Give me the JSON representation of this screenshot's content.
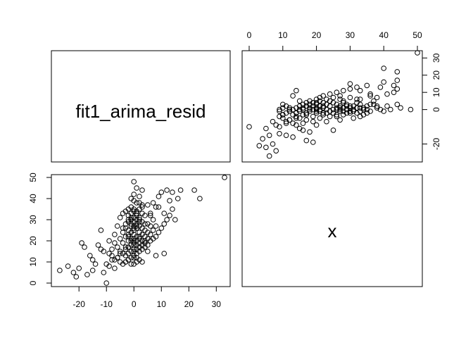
{
  "chart_data": {
    "type": "scatter",
    "plot_kind": "pairs",
    "variables": [
      "fit1_arima_resid",
      "x"
    ],
    "axes": {
      "fit1_arima_resid": {
        "range": [
          -28,
          33
        ],
        "ticks": [
          -20,
          -10,
          0,
          10,
          20,
          30
        ]
      },
      "x": {
        "range": [
          0,
          50
        ],
        "ticks": [
          0,
          10,
          20,
          30,
          40,
          50
        ]
      }
    },
    "panels": {
      "top_right": {
        "x_variable": "x",
        "y_variable": "fit1_arima_resid"
      },
      "bottom_left": {
        "x_variable": "fit1_arima_resid",
        "y_variable": "x"
      }
    },
    "points": {
      "fit1_arima_resid": [
        -27,
        -24,
        -22,
        -21,
        -20,
        -18,
        -17,
        -16,
        -15,
        -15,
        -14,
        -13,
        -12,
        -11,
        -11,
        -10,
        -10,
        -9,
        -9,
        -8,
        -8,
        -7,
        -7,
        -7,
        -6,
        -6,
        -6,
        -5,
        -5,
        -5,
        -5,
        -4,
        -4,
        -4,
        -4,
        -4,
        -3,
        -3,
        -3,
        -3,
        -3,
        -3,
        -2,
        -2,
        -2,
        -2,
        -2,
        -2,
        -2,
        -2,
        -1,
        -1,
        -1,
        -1,
        -1,
        -1,
        -1,
        -1,
        -1,
        0,
        0,
        0,
        0,
        0,
        0,
        0,
        0,
        0,
        0,
        0,
        0,
        1,
        1,
        1,
        1,
        1,
        1,
        1,
        1,
        1,
        2,
        2,
        2,
        2,
        2,
        2,
        2,
        2,
        3,
        3,
        3,
        3,
        3,
        3,
        3,
        4,
        4,
        4,
        4,
        4,
        4,
        5,
        5,
        5,
        5,
        5,
        6,
        6,
        6,
        6,
        7,
        7,
        7,
        7,
        8,
        8,
        8,
        9,
        9,
        10,
        10,
        11,
        11,
        12,
        12,
        13,
        13,
        14,
        14,
        15,
        16,
        17,
        22,
        24,
        33,
        -19,
        -12,
        -8,
        -6,
        -3,
        -1,
        1,
        2,
        3,
        5,
        8,
        11,
        -2,
        0,
        2,
        4,
        -1,
        1,
        3,
        -4,
        -2,
        0,
        2,
        0,
        1,
        -3,
        -1,
        1,
        3,
        6,
        9,
        -5,
        -2,
        2,
        0,
        4,
        -9,
        -7,
        -3,
        -1,
        0,
        2,
        1,
        0,
        -1,
        0,
        1,
        2,
        -2,
        1,
        0,
        -1,
        3,
        2
      ],
      "x": [
        6,
        8,
        5,
        3,
        7,
        17,
        4,
        13,
        6,
        11,
        9,
        18,
        25,
        5,
        15,
        9,
        0,
        20,
        14,
        16,
        11,
        7,
        19,
        23,
        12,
        17,
        27,
        10,
        15,
        21,
        31,
        9,
        14,
        19,
        26,
        33,
        10,
        13,
        17,
        22,
        28,
        34,
        11,
        14,
        17,
        20,
        25,
        29,
        32,
        35,
        12,
        15,
        18,
        21,
        24,
        27,
        30,
        33,
        36,
        13,
        15,
        16,
        18,
        19,
        21,
        23,
        25,
        27,
        29,
        31,
        34,
        14,
        16,
        18,
        20,
        22,
        26,
        28,
        30,
        33,
        15,
        17,
        19,
        21,
        24,
        27,
        30,
        35,
        16,
        18,
        20,
        23,
        26,
        29,
        33,
        17,
        19,
        22,
        25,
        28,
        32,
        18,
        21,
        24,
        28,
        37,
        20,
        23,
        27,
        33,
        21,
        25,
        30,
        38,
        22,
        27,
        36,
        24,
        41,
        26,
        43,
        28,
        33,
        30,
        44,
        32,
        39,
        43,
        35,
        30,
        40,
        44,
        44,
        40,
        50,
        19,
        16,
        13,
        12,
        10,
        9,
        12,
        11,
        10,
        15,
        13,
        14,
        22,
        26,
        31,
        20,
        28,
        32,
        36,
        24,
        30,
        35,
        38,
        12,
        10,
        16,
        20,
        27,
        37,
        32,
        36,
        14,
        17,
        22,
        9,
        19,
        8,
        11,
        26,
        30,
        39,
        41,
        45,
        48,
        40,
        42,
        34,
        29,
        23,
        38,
        20,
        31,
        44,
        17
      ]
    }
  }
}
